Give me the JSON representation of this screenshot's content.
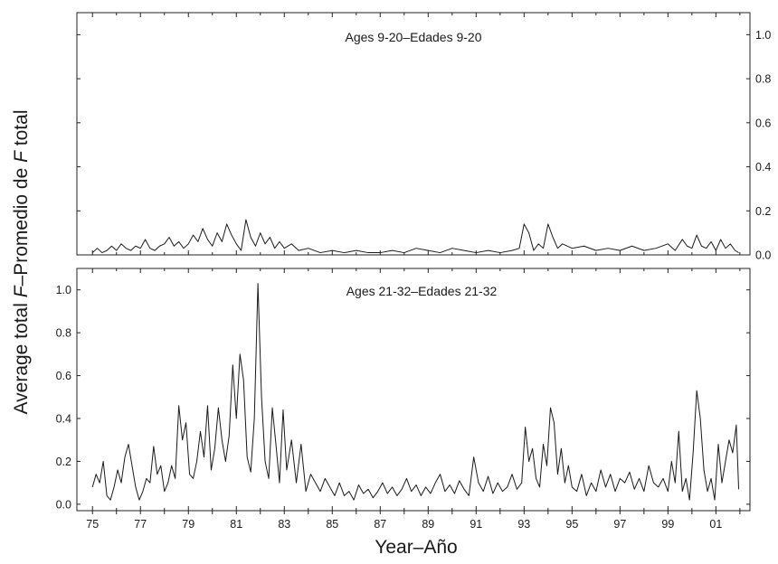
{
  "chart_data": [
    {
      "type": "line",
      "title": "Ages 9-20–Edades 9-20",
      "ylim": [
        0.0,
        1.1
      ],
      "xlim": [
        1974.35,
        2002.42
      ],
      "y_ticks": [
        "0.0",
        "0.2",
        "0.4",
        "0.6",
        "0.8",
        "1.0"
      ],
      "y_tick_values": [
        0.0,
        0.2,
        0.4,
        0.6,
        0.8,
        1.0
      ],
      "tick_labels_side": "right",
      "grid": false,
      "series": [
        {
          "x": [
            1975.0,
            1975.2,
            1975.4,
            1975.6,
            1975.8,
            1976.0,
            1976.2,
            1976.4,
            1976.6,
            1976.8,
            1977.0,
            1977.2,
            1977.4,
            1977.6,
            1977.8,
            1978.0,
            1978.2,
            1978.4,
            1978.6,
            1978.8,
            1979.0,
            1979.2,
            1979.4,
            1979.6,
            1979.8,
            1980.0,
            1980.2,
            1980.4,
            1980.6,
            1980.8,
            1981.0,
            1981.2,
            1981.4,
            1981.6,
            1981.8,
            1982.0,
            1982.2,
            1982.4,
            1982.6,
            1982.8,
            1983.0,
            1983.3,
            1983.6,
            1984.0,
            1984.5,
            1985.0,
            1985.5,
            1986.0,
            1986.5,
            1987.0,
            1987.5,
            1988.0,
            1988.5,
            1989.0,
            1989.5,
            1990.0,
            1990.5,
            1991.0,
            1991.5,
            1992.0,
            1992.5,
            1992.8,
            1993.0,
            1993.2,
            1993.4,
            1993.6,
            1993.8,
            1994.0,
            1994.2,
            1994.4,
            1994.6,
            1995.0,
            1995.5,
            1996.0,
            1996.5,
            1997.0,
            1997.5,
            1998.0,
            1998.5,
            1999.0,
            1999.3,
            1999.6,
            1999.8,
            2000.0,
            2000.2,
            2000.4,
            2000.6,
            2000.8,
            2001.0,
            2001.2,
            2001.4,
            2001.6,
            2001.8,
            2001.95
          ],
          "y": [
            0.01,
            0.03,
            0.01,
            0.02,
            0.04,
            0.02,
            0.05,
            0.03,
            0.02,
            0.04,
            0.03,
            0.07,
            0.03,
            0.02,
            0.04,
            0.05,
            0.08,
            0.04,
            0.06,
            0.03,
            0.05,
            0.09,
            0.06,
            0.12,
            0.07,
            0.04,
            0.1,
            0.06,
            0.14,
            0.09,
            0.05,
            0.02,
            0.16,
            0.08,
            0.04,
            0.1,
            0.05,
            0.08,
            0.03,
            0.06,
            0.03,
            0.05,
            0.02,
            0.03,
            0.01,
            0.02,
            0.01,
            0.02,
            0.01,
            0.01,
            0.02,
            0.01,
            0.03,
            0.02,
            0.01,
            0.03,
            0.02,
            0.01,
            0.02,
            0.01,
            0.02,
            0.03,
            0.14,
            0.1,
            0.02,
            0.05,
            0.03,
            0.14,
            0.08,
            0.03,
            0.05,
            0.03,
            0.04,
            0.02,
            0.03,
            0.02,
            0.04,
            0.02,
            0.03,
            0.05,
            0.02,
            0.07,
            0.04,
            0.03,
            0.09,
            0.04,
            0.03,
            0.06,
            0.02,
            0.07,
            0.03,
            0.05,
            0.02,
            0.01
          ]
        }
      ]
    },
    {
      "type": "line",
      "title": "Ages 21-32–Edades 21-32",
      "ylim": [
        -0.03,
        1.1
      ],
      "xlim": [
        1974.35,
        2002.42
      ],
      "y_ticks": [
        "0.0",
        "0.2",
        "0.4",
        "0.6",
        "0.8",
        "1.0"
      ],
      "y_tick_values": [
        0.0,
        0.2,
        0.4,
        0.6,
        0.8,
        1.0
      ],
      "tick_labels_side": "left",
      "x_ticks": [
        "75",
        "77",
        "79",
        "81",
        "83",
        "85",
        "87",
        "89",
        "91",
        "93",
        "95",
        "97",
        "99",
        "01"
      ],
      "x_tick_values": [
        1975,
        1977,
        1979,
        1981,
        1983,
        1985,
        1987,
        1989,
        1991,
        1993,
        1995,
        1997,
        1999,
        2001
      ],
      "grid": false,
      "series": [
        {
          "x": [
            1975.0,
            1975.15,
            1975.3,
            1975.45,
            1975.6,
            1975.75,
            1975.9,
            1976.05,
            1976.2,
            1976.35,
            1976.5,
            1976.65,
            1976.8,
            1976.95,
            1977.1,
            1977.25,
            1977.4,
            1977.55,
            1977.7,
            1977.85,
            1978.0,
            1978.15,
            1978.3,
            1978.45,
            1978.6,
            1978.75,
            1978.9,
            1979.05,
            1979.2,
            1979.35,
            1979.5,
            1979.65,
            1979.8,
            1979.95,
            1980.1,
            1980.25,
            1980.4,
            1980.55,
            1980.7,
            1980.85,
            1981.0,
            1981.15,
            1981.3,
            1981.45,
            1981.6,
            1981.75,
            1981.9,
            1982.05,
            1982.2,
            1982.35,
            1982.5,
            1982.65,
            1982.8,
            1982.95,
            1983.1,
            1983.3,
            1983.5,
            1983.7,
            1983.9,
            1984.1,
            1984.3,
            1984.5,
            1984.7,
            1984.9,
            1985.1,
            1985.3,
            1985.5,
            1985.7,
            1985.9,
            1986.1,
            1986.3,
            1986.5,
            1986.7,
            1986.9,
            1987.1,
            1987.3,
            1987.5,
            1987.7,
            1987.9,
            1988.1,
            1988.3,
            1988.5,
            1988.7,
            1988.9,
            1989.1,
            1989.3,
            1989.5,
            1989.7,
            1989.9,
            1990.1,
            1990.3,
            1990.5,
            1990.7,
            1990.9,
            1991.1,
            1991.3,
            1991.5,
            1991.7,
            1991.9,
            1992.1,
            1992.3,
            1992.5,
            1992.7,
            1992.9,
            1993.05,
            1993.2,
            1993.35,
            1993.5,
            1993.65,
            1993.8,
            1993.95,
            1994.1,
            1994.25,
            1994.4,
            1994.55,
            1994.7,
            1994.85,
            1995.0,
            1995.2,
            1995.4,
            1995.6,
            1995.8,
            1996.0,
            1996.2,
            1996.4,
            1996.6,
            1996.8,
            1997.0,
            1997.2,
            1997.4,
            1997.6,
            1997.8,
            1998.0,
            1998.2,
            1998.4,
            1998.6,
            1998.8,
            1999.0,
            1999.15,
            1999.3,
            1999.45,
            1999.6,
            1999.75,
            1999.9,
            2000.05,
            2000.2,
            2000.35,
            2000.5,
            2000.65,
            2000.8,
            2000.95,
            2001.1,
            2001.25,
            2001.4,
            2001.55,
            2001.7,
            2001.85,
            2001.95
          ],
          "y": [
            0.08,
            0.14,
            0.1,
            0.2,
            0.04,
            0.02,
            0.08,
            0.16,
            0.1,
            0.22,
            0.28,
            0.18,
            0.08,
            0.02,
            0.06,
            0.12,
            0.1,
            0.27,
            0.14,
            0.18,
            0.06,
            0.1,
            0.18,
            0.12,
            0.46,
            0.3,
            0.38,
            0.14,
            0.12,
            0.2,
            0.34,
            0.22,
            0.46,
            0.16,
            0.26,
            0.45,
            0.3,
            0.2,
            0.32,
            0.65,
            0.4,
            0.7,
            0.58,
            0.22,
            0.15,
            0.4,
            1.03,
            0.5,
            0.2,
            0.12,
            0.45,
            0.28,
            0.1,
            0.44,
            0.16,
            0.3,
            0.1,
            0.28,
            0.06,
            0.14,
            0.1,
            0.06,
            0.12,
            0.08,
            0.04,
            0.1,
            0.04,
            0.06,
            0.02,
            0.09,
            0.05,
            0.07,
            0.03,
            0.06,
            0.1,
            0.05,
            0.08,
            0.04,
            0.07,
            0.12,
            0.06,
            0.09,
            0.04,
            0.08,
            0.05,
            0.1,
            0.14,
            0.06,
            0.09,
            0.05,
            0.11,
            0.07,
            0.04,
            0.22,
            0.1,
            0.06,
            0.13,
            0.05,
            0.1,
            0.06,
            0.08,
            0.14,
            0.07,
            0.1,
            0.36,
            0.2,
            0.26,
            0.12,
            0.08,
            0.28,
            0.18,
            0.45,
            0.38,
            0.14,
            0.26,
            0.1,
            0.18,
            0.08,
            0.06,
            0.14,
            0.04,
            0.1,
            0.06,
            0.16,
            0.08,
            0.14,
            0.06,
            0.12,
            0.1,
            0.15,
            0.07,
            0.12,
            0.06,
            0.18,
            0.1,
            0.08,
            0.12,
            0.06,
            0.2,
            0.1,
            0.34,
            0.06,
            0.12,
            0.02,
            0.24,
            0.53,
            0.4,
            0.16,
            0.06,
            0.12,
            0.02,
            0.28,
            0.1,
            0.2,
            0.3,
            0.24,
            0.37,
            0.07
          ]
        }
      ]
    }
  ],
  "axes": {
    "ylabel_prefix": "Average total ",
    "ylabel_italic": "F",
    "ylabel_mid": "–Promedio de ",
    "ylabel_italic_2": "F",
    "ylabel_suffix": " total",
    "xlabel": "Year–Año"
  }
}
